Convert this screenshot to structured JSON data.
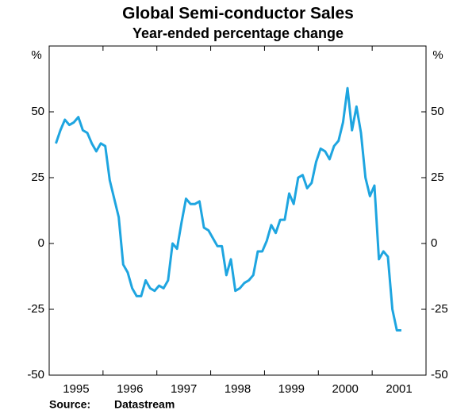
{
  "chart_data": {
    "type": "line",
    "title": "Global Semi-conductor Sales",
    "subtitle": "Year-ended percentage change",
    "y_unit": "%",
    "source_label": "Source:",
    "source": "Datastream",
    "categories": [
      null,
      null,
      null,
      null,
      null,
      null,
      "1995",
      null,
      null,
      null,
      null,
      null,
      null,
      null,
      null,
      null,
      null,
      null,
      "1996",
      null,
      null,
      null,
      null,
      null,
      null,
      null,
      null,
      null,
      null,
      null,
      "1997",
      null,
      null,
      null,
      null,
      null,
      null,
      null,
      null,
      null,
      null,
      null,
      "1998",
      null,
      null,
      null,
      null,
      null,
      null,
      null,
      null,
      null,
      null,
      null,
      "1999",
      null,
      null,
      null,
      null,
      null,
      null,
      null,
      null,
      null,
      null,
      null,
      "2000",
      null,
      null,
      null,
      null,
      null,
      null,
      null,
      null,
      null,
      null,
      null,
      "2001",
      null,
      null,
      null,
      null,
      null
    ],
    "values": [
      null,
      38,
      43,
      47,
      45,
      46,
      48,
      43,
      42,
      38,
      35,
      38,
      37,
      24,
      17,
      10,
      -8,
      -11,
      -17,
      -20,
      -20,
      -14,
      -17,
      -18,
      -16,
      -17,
      -14,
      0,
      -2,
      8,
      17,
      15,
      15,
      16,
      6,
      5,
      2,
      -1,
      -1,
      -12,
      -6,
      -18,
      -17,
      -15,
      -14,
      -12,
      -3,
      -3,
      1,
      7,
      4,
      9,
      9,
      19,
      15,
      25,
      26,
      21,
      23,
      31,
      36,
      35,
      32,
      37,
      39,
      46,
      59,
      43,
      52,
      42,
      25,
      18,
      22,
      -6,
      -3,
      -5,
      -25,
      -33,
      -33,
      null,
      null,
      null,
      null,
      null
    ],
    "color": "#1ea5e0",
    "ylim": [
      -50,
      75
    ],
    "yticks": [
      -50,
      -25,
      0,
      25,
      50
    ],
    "grid": false
  }
}
